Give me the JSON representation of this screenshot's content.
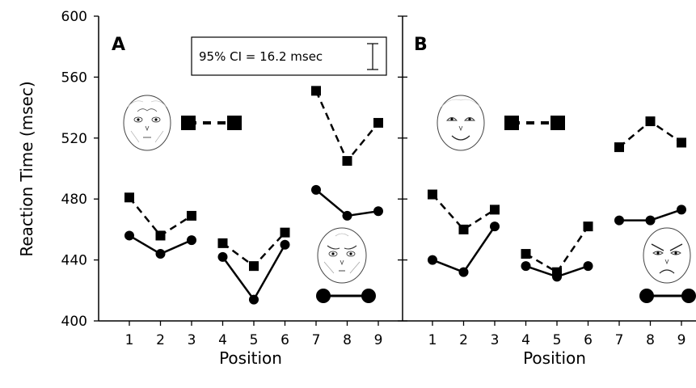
{
  "chart_data": [
    {
      "type": "line",
      "panel": "A",
      "ylabel": "Reaction Time (msec)",
      "xlabel": "Position",
      "ylim": [
        400,
        600
      ],
      "yticks": [
        400,
        440,
        480,
        520,
        560,
        600
      ],
      "xticks": [
        1,
        2,
        3,
        4,
        5,
        6,
        7,
        8,
        9
      ],
      "annotation": "95% CI = 16.2 msec",
      "series": [
        {
          "style": "dashed",
          "marker": "square",
          "groups": [
            {
              "x": [
                1,
                2,
                3
              ],
              "y": [
                481,
                456,
                469
              ]
            },
            {
              "x": [
                4,
                5,
                6
              ],
              "y": [
                451,
                436,
                458
              ]
            },
            {
              "x": [
                7,
                8,
                9
              ],
              "y": [
                551,
                505,
                530
              ]
            }
          ]
        },
        {
          "style": "solid",
          "marker": "circle",
          "groups": [
            {
              "x": [
                1,
                2,
                3
              ],
              "y": [
                456,
                444,
                453
              ]
            },
            {
              "x": [
                4,
                5,
                6
              ],
              "y": [
                442,
                414,
                450
              ]
            },
            {
              "x": [
                7,
                8,
                9
              ],
              "y": [
                486,
                469,
                472
              ]
            }
          ]
        }
      ],
      "legend": [
        {
          "face": "neutral-face",
          "style": "dashed",
          "marker": "square"
        },
        {
          "face": "angry-face",
          "style": "solid",
          "marker": "circle"
        }
      ]
    },
    {
      "type": "line",
      "panel": "B",
      "ylabel": "",
      "xlabel": "Position",
      "ylim": [
        400,
        600
      ],
      "xticks": [
        1,
        2,
        3,
        4,
        5,
        6,
        7,
        8,
        9
      ],
      "series": [
        {
          "style": "dashed",
          "marker": "square",
          "groups": [
            {
              "x": [
                1,
                2,
                3
              ],
              "y": [
                483,
                460,
                473
              ]
            },
            {
              "x": [
                4,
                5,
                6
              ],
              "y": [
                444,
                432,
                462
              ]
            },
            {
              "x": [
                7,
                8,
                9
              ],
              "y": [
                514,
                531,
                517
              ]
            }
          ]
        },
        {
          "style": "solid",
          "marker": "circle",
          "groups": [
            {
              "x": [
                1,
                2,
                3
              ],
              "y": [
                440,
                432,
                462
              ]
            },
            {
              "x": [
                4,
                5,
                6
              ],
              "y": [
                436,
                429,
                436
              ]
            },
            {
              "x": [
                7,
                8,
                9
              ],
              "y": [
                466,
                466,
                473
              ]
            }
          ]
        }
      ],
      "legend": [
        {
          "face": "happy-face",
          "style": "dashed",
          "marker": "square"
        },
        {
          "face": "angry-face",
          "style": "solid",
          "marker": "circle"
        }
      ]
    }
  ]
}
